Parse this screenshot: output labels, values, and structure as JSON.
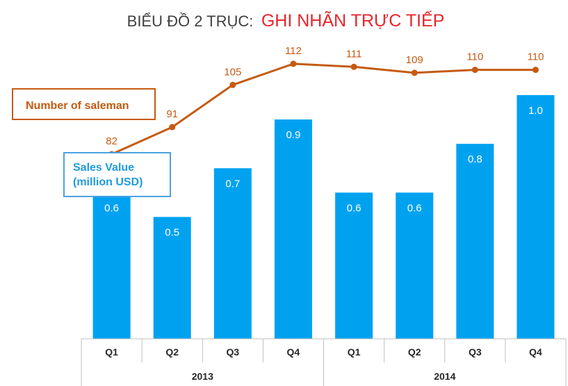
{
  "title": {
    "prefix": "BIỂU ĐỒ 2 TRỤC:",
    "highlight": "GHI NHÃN TRỰC TIẾP"
  },
  "colors": {
    "bar": "#00a2f0",
    "line": "#c55a11",
    "title_highlight": "#e8262b",
    "bar_legend_border": "#4aa3df"
  },
  "chart_data": {
    "type": "bar",
    "title": "BIỂU ĐỒ 2 TRỤC: GHI NHÃN TRỰC TIẾP",
    "categories": [
      "Q1",
      "Q2",
      "Q3",
      "Q4",
      "Q1",
      "Q2",
      "Q3",
      "Q4"
    ],
    "category_groups": [
      {
        "label": "2013",
        "count": 4
      },
      {
        "label": "2014",
        "count": 4
      }
    ],
    "series": [
      {
        "name": "Sales Value (million USD)",
        "type": "bar",
        "axis": "primary",
        "values": [
          0.6,
          0.5,
          0.7,
          0.9,
          0.6,
          0.6,
          0.8,
          1.0
        ],
        "labels": [
          "0.6",
          "0.5",
          "0.7",
          "0.9",
          "0.6",
          "0.6",
          "0.8",
          "1.0"
        ]
      },
      {
        "name": "Number of saleman",
        "type": "line",
        "axis": "secondary",
        "values": [
          82,
          91,
          105,
          112,
          111,
          109,
          110,
          110
        ],
        "labels": [
          "82",
          "91",
          "105",
          "112",
          "111",
          "109",
          "110",
          "110"
        ]
      }
    ],
    "ylim_primary": [
      0,
      1.0
    ],
    "ylim_secondary": [
      0,
      120
    ],
    "grid": false,
    "legend": "direct labels"
  },
  "legend": {
    "line_label": "Number of saleman",
    "bar_label_line1": "Sales Value",
    "bar_label_line2": "(million USD)"
  }
}
